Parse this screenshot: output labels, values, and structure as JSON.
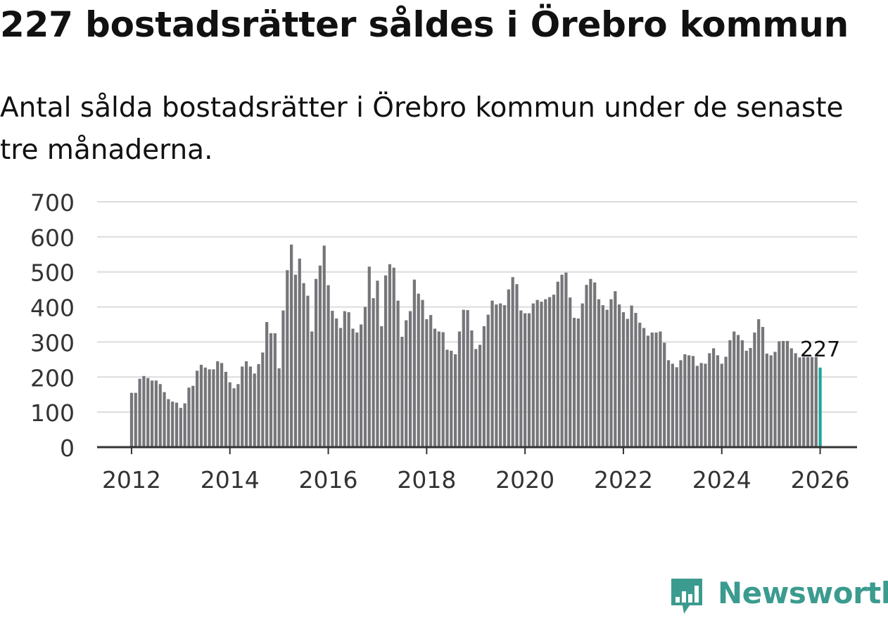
{
  "header": {
    "title": "227 bostadsrätter såldes i Örebro kommun",
    "subtitle": "Antal sålda bostadsrätter i Örebro kommun under de senaste tre månaderna."
  },
  "brand": {
    "name": "Newsworthy",
    "color": "#3b9b8f"
  },
  "colors": {
    "bar": "#76767a",
    "highlight": "#1aa59a",
    "grid": "#dcdcdc",
    "axis": "#333333"
  },
  "chart_data": {
    "type": "bar",
    "title": "227 bostadsrätter såldes i Örebro kommun",
    "subtitle": "Antal sålda bostadsrätter i Örebro kommun under de senaste tre månaderna.",
    "xlabel": "",
    "ylabel": "",
    "ylim": [
      0,
      700
    ],
    "yticks": [
      0,
      100,
      200,
      300,
      400,
      500,
      600,
      700
    ],
    "xrange": [
      2011.3,
      2026.75
    ],
    "xticks": [
      2012,
      2014,
      2016,
      2018,
      2020,
      2022,
      2024,
      2026
    ],
    "grid": true,
    "start": {
      "year": 2012,
      "month": 1
    },
    "values": [
      155,
      155,
      195,
      203,
      197,
      190,
      190,
      180,
      157,
      137,
      130,
      127,
      112,
      125,
      170,
      175,
      218,
      235,
      227,
      222,
      222,
      245,
      240,
      215,
      185,
      168,
      180,
      230,
      245,
      230,
      210,
      237,
      270,
      357,
      325,
      325,
      225,
      390,
      505,
      578,
      492,
      538,
      468,
      432,
      330,
      480,
      518,
      575,
      462,
      389,
      367,
      340,
      388,
      385,
      338,
      327,
      350,
      400,
      515,
      425,
      475,
      345,
      490,
      522,
      512,
      418,
      315,
      362,
      388,
      478,
      438,
      420,
      365,
      377,
      338,
      330,
      328,
      278,
      275,
      265,
      330,
      392,
      391,
      333,
      280,
      292,
      345,
      378,
      418,
      407,
      410,
      405,
      450,
      485,
      465,
      390,
      382,
      382,
      410,
      420,
      415,
      422,
      428,
      435,
      472,
      492,
      498,
      427,
      369,
      367,
      410,
      463,
      480,
      470,
      422,
      405,
      392,
      422,
      445,
      407,
      385,
      366,
      404,
      383,
      355,
      340,
      318,
      327,
      327,
      330,
      298,
      248,
      238,
      228,
      248,
      265,
      262,
      260,
      232,
      240,
      238,
      268,
      282,
      262,
      238,
      258,
      305,
      330,
      320,
      305,
      275,
      283,
      327,
      365,
      343,
      267,
      262,
      272,
      302,
      303,
      303,
      282,
      268,
      256,
      257,
      257,
      257,
      257,
      227
    ],
    "annotation": {
      "label": "227",
      "target": "last"
    }
  }
}
